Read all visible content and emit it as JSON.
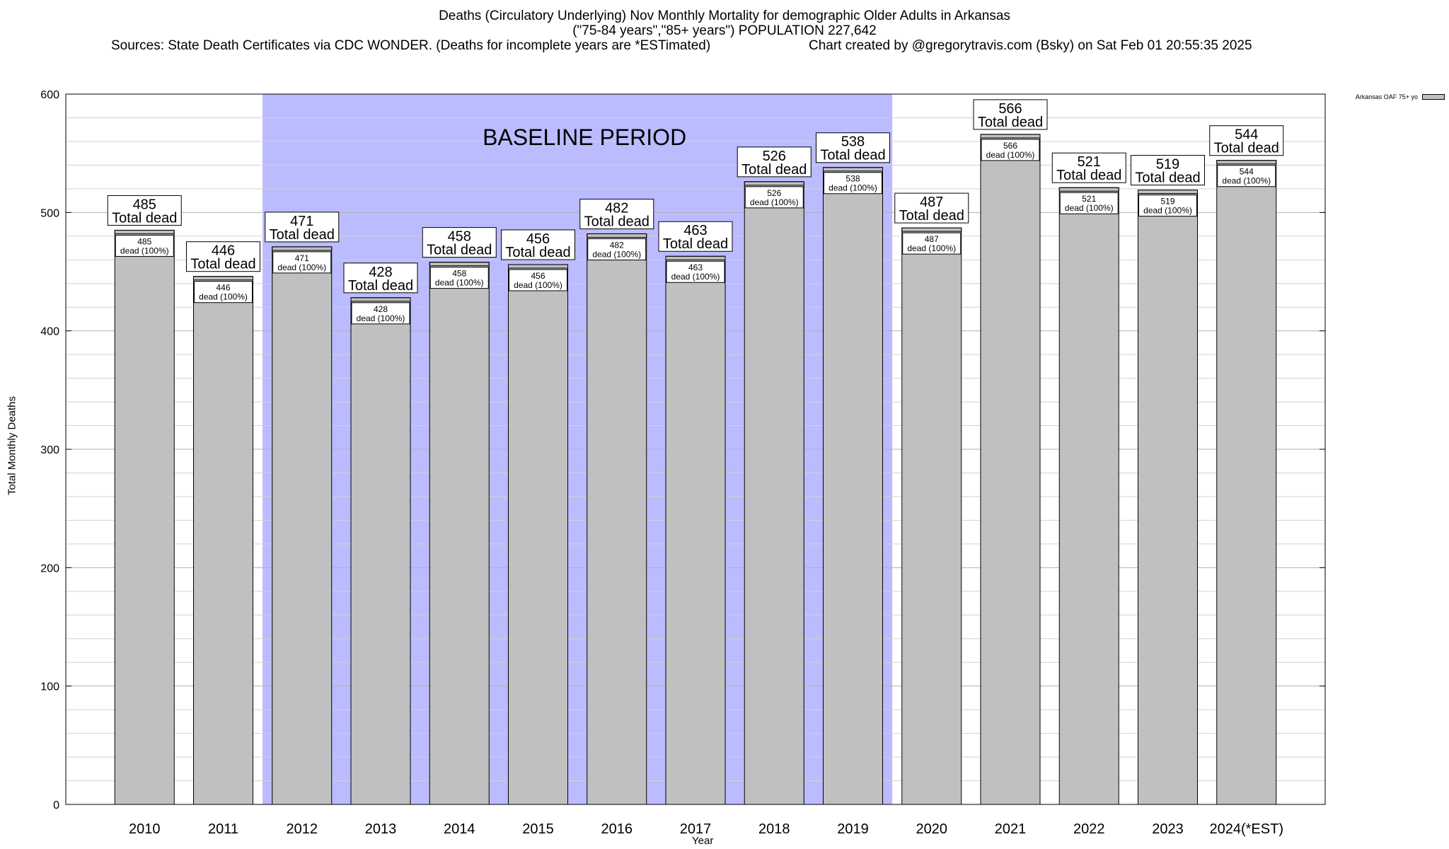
{
  "chart_data": {
    "type": "bar",
    "title_lines": [
      "Deaths (Circulatory Underlying) Nov Monthly Mortality for demographic Older Adults in Arkansas",
      "(\"75-84 years\",\"85+ years\") POPULATION 227,642"
    ],
    "sources": "Sources: State Death Certificates via CDC WONDER. (Deaths for incomplete years are *ESTimated)",
    "credit": "Chart created by @gregorytravis.com (Bsky) on Sat Feb 01 20:55:35 2025",
    "xlabel": "Year",
    "ylabel": "Total Monthly Deaths",
    "categories": [
      "2010",
      "2011",
      "2012",
      "2013",
      "2014",
      "2015",
      "2016",
      "2017",
      "2018",
      "2019",
      "2020",
      "2021",
      "2022",
      "2023",
      "2024(*EST)"
    ],
    "values": [
      485,
      446,
      471,
      428,
      458,
      456,
      482,
      463,
      526,
      538,
      487,
      566,
      521,
      519,
      544
    ],
    "bar_label_outer": "Total dead",
    "bar_label_inner": "dead (100%)",
    "ylim": [
      0,
      600
    ],
    "yticks": [
      0,
      100,
      200,
      300,
      400,
      500,
      600
    ],
    "grid": true,
    "baseline": {
      "label": "BASELINE PERIOD",
      "start": "2012",
      "end": "2019",
      "color": "#bbbbff"
    },
    "legend": {
      "label": "Arkansas OAF 75+ yo",
      "position": "top-right"
    },
    "bar_color": "#c0c0c0"
  }
}
